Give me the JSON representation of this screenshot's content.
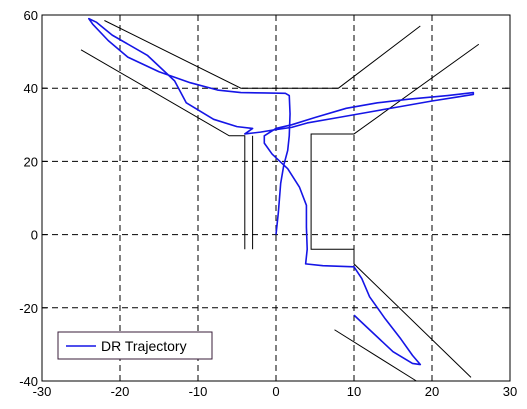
{
  "chart_data": {
    "type": "line",
    "title": "",
    "xlabel": "",
    "ylabel": "",
    "xlim": [
      -30,
      30
    ],
    "ylim": [
      -40,
      60
    ],
    "xticks": [
      -30,
      -20,
      -10,
      0,
      10,
      20,
      30
    ],
    "yticks": [
      -40,
      -20,
      0,
      20,
      40,
      60
    ],
    "grid": true,
    "legend_position": "bottom-left",
    "colors": {
      "trajectory": "#1515e6",
      "walls": "#000000",
      "grid": "#000000"
    },
    "series": [
      {
        "name": "DR Trajectory",
        "points": [
          [
            0,
            0
          ],
          [
            0.3,
            6
          ],
          [
            0.6,
            14
          ],
          [
            1,
            19
          ],
          [
            1.5,
            23
          ],
          [
            1.7,
            27
          ],
          [
            1.8,
            33
          ],
          [
            1.7,
            38
          ],
          [
            1.2,
            38.6
          ],
          [
            -1.5,
            38.7
          ],
          [
            -4.5,
            38.8
          ],
          [
            -7.5,
            39.5
          ],
          [
            -11,
            41.5
          ],
          [
            -15,
            44.5
          ],
          [
            -19,
            48.5
          ],
          [
            -21.5,
            53
          ],
          [
            -23.5,
            57.5
          ],
          [
            -24,
            59
          ],
          [
            -23,
            58
          ],
          [
            -21,
            54.5
          ],
          [
            -16.5,
            49
          ],
          [
            -13,
            42
          ],
          [
            -11.5,
            36
          ],
          [
            -8,
            31.5
          ],
          [
            -5,
            29.5
          ],
          [
            -3,
            29
          ],
          [
            -4,
            27.5
          ],
          [
            -2,
            28
          ],
          [
            0,
            28.7
          ],
          [
            2,
            29.3
          ],
          [
            4,
            30.5
          ],
          [
            8,
            32
          ],
          [
            12,
            33.5
          ],
          [
            16,
            35
          ],
          [
            20,
            36.5
          ],
          [
            23,
            37.5
          ],
          [
            25.3,
            38.3
          ],
          [
            25.3,
            38.8
          ],
          [
            22,
            38
          ],
          [
            17,
            37
          ],
          [
            13,
            36
          ],
          [
            9,
            34.5
          ],
          [
            5,
            32
          ],
          [
            2,
            30
          ],
          [
            0,
            29
          ],
          [
            -1.5,
            27
          ],
          [
            -1.5,
            25
          ],
          [
            -0.5,
            22
          ],
          [
            1.5,
            18
          ],
          [
            3,
            13
          ],
          [
            3.9,
            8
          ],
          [
            3.9,
            2
          ],
          [
            4,
            -4
          ],
          [
            3.8,
            -8
          ],
          [
            6,
            -8.5
          ],
          [
            10,
            -8.8
          ],
          [
            11,
            -12
          ],
          [
            12,
            -17
          ],
          [
            14,
            -23
          ],
          [
            16,
            -28.5
          ],
          [
            17.5,
            -33
          ],
          [
            18.5,
            -35.5
          ],
          [
            17.5,
            -35.2
          ],
          [
            15,
            -32
          ],
          [
            12,
            -26
          ],
          [
            10,
            -22
          ]
        ]
      }
    ],
    "walls": [
      [
        [
          -25,
          50.5
        ],
        [
          -6,
          27
        ],
        [
          -4,
          27
        ],
        [
          -4,
          -4
        ]
      ],
      [
        [
          -22,
          58.5
        ],
        [
          -4.5,
          40
        ],
        [
          8,
          40
        ],
        [
          18.5,
          57
        ]
      ],
      [
        [
          26,
          52
        ],
        [
          10,
          27.5
        ],
        [
          4.5,
          27.5
        ],
        [
          4.5,
          -4
        ],
        [
          10,
          -4
        ],
        [
          10,
          -8
        ],
        [
          25,
          -39
        ]
      ],
      [
        [
          18,
          -40
        ],
        [
          7.5,
          -26
        ]
      ],
      [
        [
          -3,
          27
        ],
        [
          -3,
          -4
        ]
      ]
    ]
  }
}
